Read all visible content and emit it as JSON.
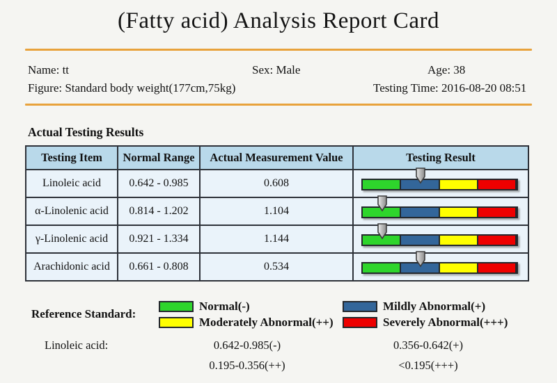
{
  "title": "(Fatty acid) Analysis Report Card",
  "patient": {
    "name": "Name: tt",
    "sex": "Sex: Male",
    "age": "Age: 38",
    "figure": "Figure: Standard body weight(177cm,75kg)",
    "testing_time": "Testing Time: 2016-08-20 08:51"
  },
  "section_heading": "Actual Testing Results",
  "table": {
    "headers": [
      "Testing Item",
      "Normal Range",
      "Actual Measurement Value",
      "Testing Result"
    ],
    "rows": [
      {
        "item": "Linoleic acid",
        "normal_range": "0.642 - 0.985",
        "measured_value": "0.608",
        "result_zone": "mildly-abnormal",
        "marker_position_pct": 37.5
      },
      {
        "item": "α-Linolenic acid",
        "normal_range": "0.814 - 1.202",
        "measured_value": "1.104",
        "result_zone": "normal",
        "marker_position_pct": 12.5
      },
      {
        "item": "γ-Linolenic acid",
        "normal_range": "0.921 - 1.334",
        "measured_value": "1.144",
        "result_zone": "normal",
        "marker_position_pct": 12.5
      },
      {
        "item": "Arachidonic acid",
        "normal_range": "0.661 - 0.808",
        "measured_value": "0.534",
        "result_zone": "mildly-abnormal",
        "marker_position_pct": 37.5
      }
    ]
  },
  "legend": {
    "label": "Reference Standard:",
    "entries": [
      {
        "name": "normal",
        "label": "Normal(-)"
      },
      {
        "name": "mildly-abnormal",
        "label": "Mildly Abnormal(+)"
      },
      {
        "name": "moderately-abnormal",
        "label": "Moderately Abnormal(++)"
      },
      {
        "name": "severely-abnormal",
        "label": "Severely Abnormal(+++)"
      }
    ]
  },
  "reference_detail": {
    "item_label": "Linoleic acid:",
    "ranges": [
      "0.642-0.985(-)",
      "0.356-0.642(+)",
      "0.195-0.356(++)",
      "<0.195(+++)"
    ]
  },
  "colors": {
    "accent_line": "#e8a23c",
    "table_border": "#2d3138",
    "header_bg": "#b9d9ea",
    "row_bg": "#eaf3fa",
    "green": "#2ed52c",
    "blue": "#33669a",
    "yellow": "#ffff00",
    "red": "#ee0000"
  }
}
